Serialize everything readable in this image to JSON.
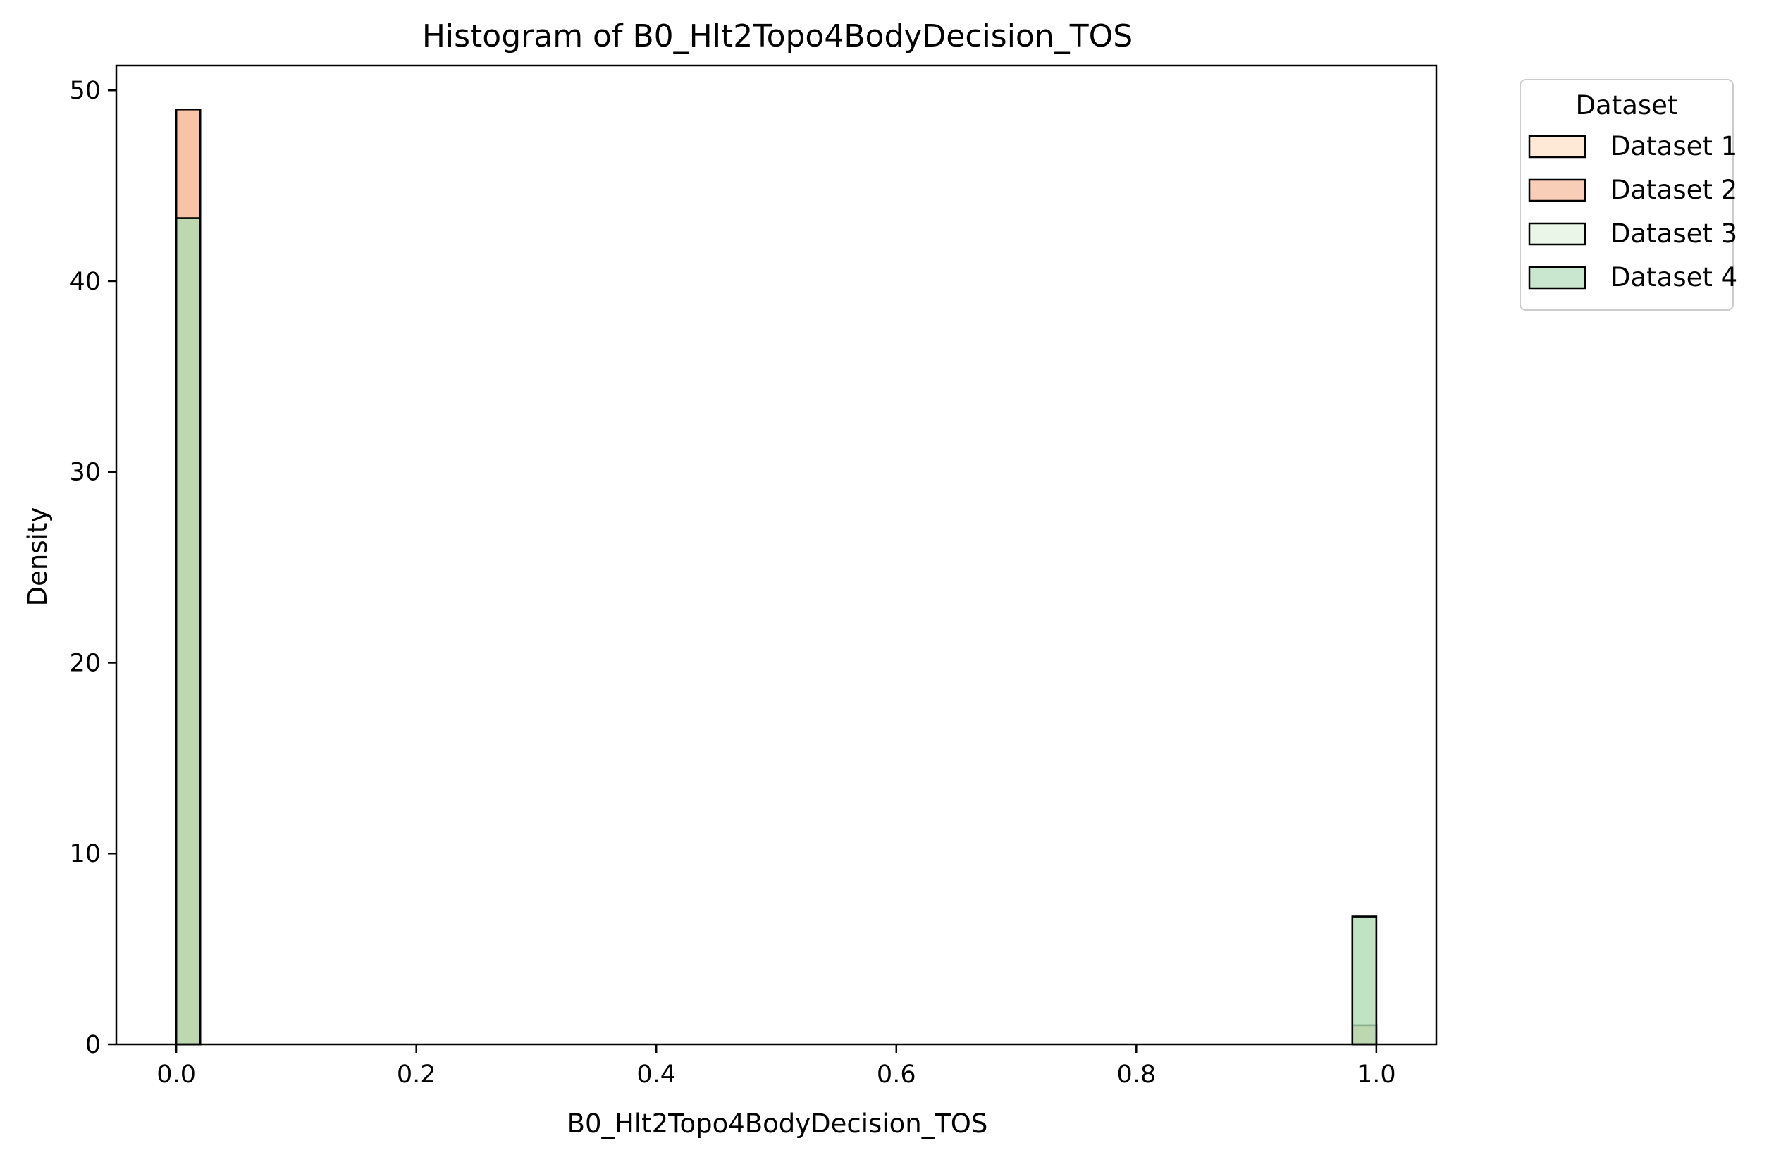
{
  "chart_data": {
    "type": "bar",
    "title": "Histogram of B0_Hlt2Topo4BodyDecision_TOS",
    "xlabel": "B0_Hlt2Topo4BodyDecision_TOS",
    "ylabel": "Density",
    "xlim": [
      -0.05,
      1.05
    ],
    "ylim": [
      0,
      51.3
    ],
    "xticks": [
      0.0,
      0.2,
      0.4,
      0.6,
      0.8,
      1.0
    ],
    "xtick_labels": [
      "0.0",
      "0.2",
      "0.4",
      "0.6",
      "0.8",
      "1.0"
    ],
    "yticks": [
      0,
      10,
      20,
      30,
      40,
      50
    ],
    "ytick_labels": [
      "0",
      "10",
      "20",
      "30",
      "40",
      "50"
    ],
    "bin_width": 0.02,
    "grid": false,
    "legend": {
      "title": "Dataset",
      "placement": "outside upper right"
    },
    "series": [
      {
        "name": "Dataset 1",
        "color": "#fdd5b4",
        "bins": [
          {
            "x": 0.0,
            "value": 49.0
          },
          {
            "x": 0.98,
            "value": 1.0
          }
        ]
      },
      {
        "name": "Dataset 2",
        "color": "#f4a57e",
        "bins": [
          {
            "x": 0.0,
            "value": 49.0
          },
          {
            "x": 0.98,
            "value": 1.0
          }
        ]
      },
      {
        "name": "Dataset 3",
        "color": "#d9efd3",
        "bins": [
          {
            "x": 0.0,
            "value": 43.3
          },
          {
            "x": 0.98,
            "value": 6.7
          }
        ]
      },
      {
        "name": "Dataset 4",
        "color": "#9bd4a6",
        "bins": [
          {
            "x": 0.0,
            "value": 43.3
          },
          {
            "x": 0.98,
            "value": 6.7
          }
        ]
      }
    ],
    "overlap_color": "#8daa6f",
    "overlap_edge_color": "#7e9a55"
  }
}
